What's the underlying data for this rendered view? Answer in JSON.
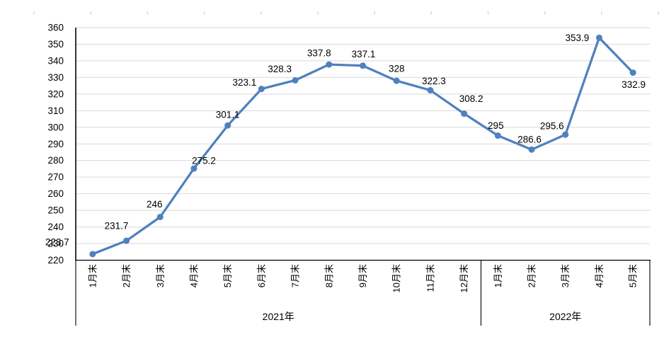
{
  "chart_data": {
    "type": "line",
    "title": "",
    "categories": [
      "1月末",
      "2月末",
      "3月末",
      "4月末",
      "5月末",
      "6月末",
      "7月末",
      "8月末",
      "9月末",
      "10月末",
      "11月末",
      "12月末",
      "1月末",
      "2月末",
      "3月末",
      "4月末",
      "5月末"
    ],
    "category_groups": [
      {
        "label": "2021年",
        "start": 0,
        "count": 12
      },
      {
        "label": "2022年",
        "start": 12,
        "count": 5
      }
    ],
    "series": [
      {
        "name": "",
        "values": [
          223.7,
          231.7,
          246,
          275.2,
          301.1,
          323.1,
          328.3,
          337.8,
          337.1,
          328,
          322.3,
          308.2,
          295,
          286.6,
          295.6,
          353.9,
          332.9
        ]
      }
    ],
    "data_labels": [
      "223.7",
      "231.7",
      "246",
      "275.2",
      "301.1",
      "323.1",
      "328.3",
      "337.8",
      "337.1",
      "328",
      "322.3",
      "308.2",
      "295",
      "286.6",
      "295.6",
      "353.9",
      "332.9"
    ],
    "ylim": [
      220,
      360
    ],
    "ytick_step": 10,
    "ytick_labels": [
      "220",
      "230",
      "240",
      "250",
      "260",
      "270",
      "280",
      "290",
      "300",
      "310",
      "320",
      "330",
      "340",
      "350",
      "360"
    ],
    "grid": true,
    "legend_position": "none",
    "marker": "circle",
    "colors": {
      "line": "#4F81BD",
      "marker": "#4F81BD",
      "gridline": "#D9D9D9",
      "axis": "#000000",
      "text": "#000000",
      "top_ticks": "#D9D9D9"
    }
  }
}
